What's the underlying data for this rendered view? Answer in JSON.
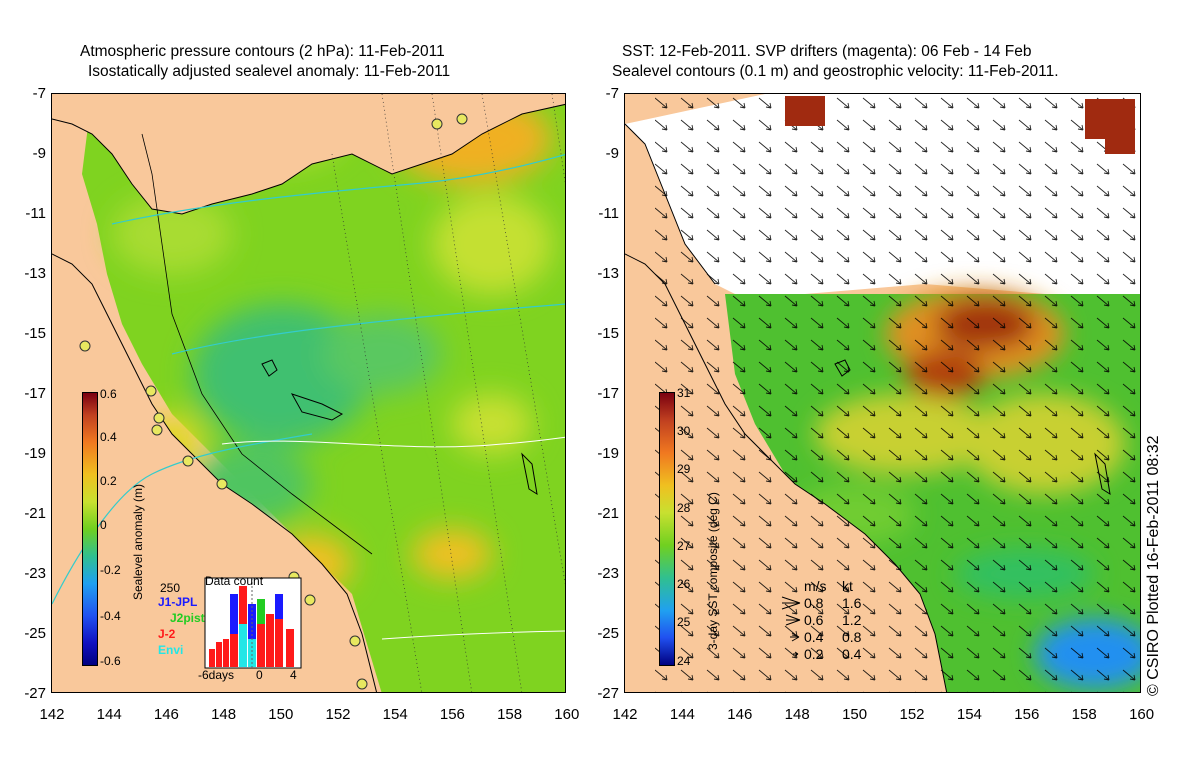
{
  "left_panel": {
    "title_line1": "Atmospheric pressure contours (2 hPa): 11-Feb-2011",
    "title_line2": "Isostatically adjusted sealevel anomaly: 11-Feb-2011",
    "colorbar": {
      "label": "Sealevel anomaly (m)",
      "ticks": [
        "0.6",
        "0.4",
        "0.2",
        "0",
        "-0.2",
        "-0.4",
        "-0.6"
      ],
      "range": [
        -0.6,
        0.6
      ]
    },
    "inset": {
      "title": "Data count",
      "max_label": "250",
      "series": [
        {
          "name": "J1-JPL",
          "color": "#1a1aff"
        },
        {
          "name": "J2pist",
          "color": "#22cc22"
        },
        {
          "name": "J-2",
          "color": "#ff1a1a"
        },
        {
          "name": "Envi",
          "color": "#22e6e6"
        }
      ],
      "x_labels": [
        "-6days",
        "0",
        "4"
      ]
    }
  },
  "right_panel": {
    "title_line1": "SST: 12-Feb-2011. SVP drifters (magenta): 06 Feb - 14 Feb",
    "title_line2": "Sealevel contours (0.1 m) and geostrophic velocity: 11-Feb-2011.",
    "colorbar": {
      "label": "3-day SST composite (deg C)",
      "ticks": [
        "31",
        "30",
        "29",
        "28",
        "27",
        "26",
        "25",
        "24"
      ],
      "range": [
        24,
        31
      ]
    },
    "velocity_legend": {
      "header_ms": "m/s",
      "header_kt": "kt",
      "rows": [
        {
          "ms": "0.8",
          "kt": "1.6"
        },
        {
          "ms": "0.6",
          "kt": "1.2"
        },
        {
          "ms": "0.4",
          "kt": "0.8"
        },
        {
          "ms": "0.2",
          "kt": "0.4"
        }
      ]
    }
  },
  "axes": {
    "lat_labels": [
      "-7",
      "-9",
      "-11",
      "-13",
      "-15",
      "-17",
      "-19",
      "-21",
      "-23",
      "-25",
      "-27"
    ],
    "lon_labels": [
      "142",
      "144",
      "146",
      "148",
      "150",
      "152",
      "154",
      "156",
      "158",
      "160"
    ]
  },
  "credit": "© CSIRO Plotted 16-Feb-2011 08:32",
  "colors": {
    "land": "#f9c89b",
    "sla_base": "#7fd320",
    "sst_base": "#4fc030"
  }
}
